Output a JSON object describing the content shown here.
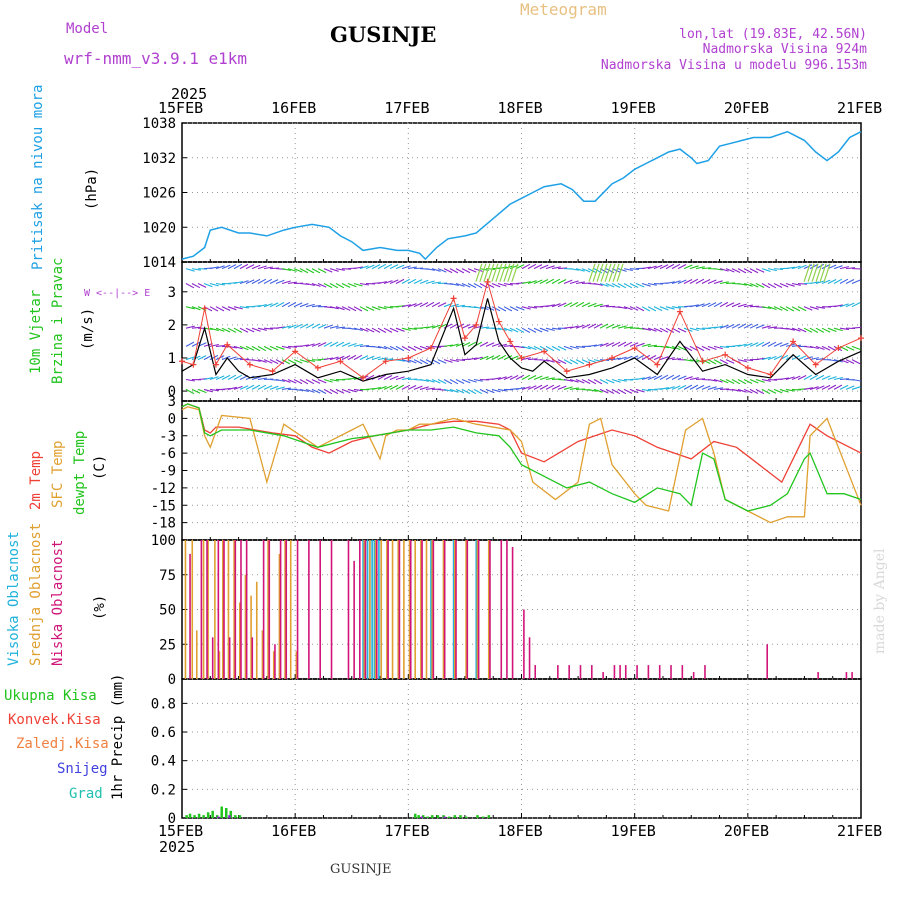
{
  "header": {
    "model_label": "Model",
    "model_name": "wrf-nmm_v3.9.1  e1km",
    "station": "GUSINJE",
    "title": "Meteogram",
    "coords": "lon,lat (19.83E, 42.56N)",
    "elevation": "Nadmorska Visina 924m",
    "model_elevation": "Nadmorska Visina u modelu 996.153m",
    "footer_station": "GUSINJE",
    "credit": "made by Angel"
  },
  "colors": {
    "pressure": "#1ea0e6",
    "temp2m": "#ef4036",
    "sfc_temp": "#e0a030",
    "dewpt": "#22c41e",
    "high_cloud": "#1eb2dc",
    "mid_cloud": "#e0a030",
    "low_cloud": "#d0147a",
    "wind_barb": "#8a22c8",
    "wind_line": "#000000",
    "gust_marker": "#ef4036"
  },
  "chart_data": [
    {
      "type": "line",
      "id": "pressure",
      "x_year": "2025",
      "x_ticks": [
        "15FEB",
        "16FEB",
        "17FEB",
        "18FEB",
        "19FEB",
        "20FEB",
        "21FEB"
      ],
      "xlim_days": [
        0,
        6
      ],
      "ylabel": "(hPa)",
      "side_labels": [
        "Pritisak na nivou mora"
      ],
      "y_ticks": [
        "1014",
        "1020",
        "1026",
        "1032",
        "1038"
      ],
      "ylim": [
        1014,
        1038
      ],
      "grid": true,
      "series": [
        {
          "name": "Pritisak na nivou mora",
          "color_key": "pressure",
          "x": [
            0,
            0.1,
            0.2,
            0.25,
            0.35,
            0.5,
            0.6,
            0.75,
            0.9,
            1.0,
            1.15,
            1.3,
            1.4,
            1.5,
            1.6,
            1.75,
            1.9,
            2.0,
            2.1,
            2.15,
            2.25,
            2.35,
            2.5,
            2.6,
            2.75,
            2.9,
            3.0,
            3.1,
            3.2,
            3.35,
            3.45,
            3.55,
            3.65,
            3.8,
            3.9,
            4.0,
            4.1,
            4.2,
            4.3,
            4.4,
            4.5,
            4.55,
            4.65,
            4.75,
            4.85,
            4.95,
            5.05,
            5.2,
            5.35,
            5.5,
            5.6,
            5.7,
            5.8,
            5.9,
            6.0
          ],
          "values": [
            1014.5,
            1015,
            1016.5,
            1019.5,
            1020,
            1019,
            1019,
            1018.5,
            1019.5,
            1020,
            1020.5,
            1020,
            1018.5,
            1017.5,
            1016,
            1016.5,
            1016,
            1016,
            1015.5,
            1014.5,
            1016.5,
            1018,
            1018.5,
            1019,
            1021.5,
            1024,
            1025,
            1026,
            1027,
            1027.5,
            1026.5,
            1024.5,
            1024.5,
            1027.5,
            1028.5,
            1030,
            1031,
            1032,
            1033,
            1033.5,
            1032,
            1031,
            1031.5,
            1034,
            1034.5,
            1035,
            1035.5,
            1035.5,
            1036.5,
            1035,
            1033,
            1031.5,
            1033,
            1035.5,
            1036.5
          ]
        }
      ]
    },
    {
      "type": "line",
      "id": "wind",
      "ylabel": "(m/s)",
      "side_labels": [
        "10m Vjetar",
        "Brzina i Pravac"
      ],
      "compass_label": "W <--|--> E",
      "y_ticks": [
        "0",
        "1",
        "2",
        "3"
      ],
      "ylim": [
        -0.3,
        3.9
      ],
      "grid": true,
      "barb_rows_ms": [
        0.05,
        0.35,
        0.95,
        1.35,
        1.9,
        2.55,
        3.25,
        3.7
      ],
      "series": [
        {
          "name": "Brzina",
          "color_key": "wind_line",
          "x": [
            0,
            0.1,
            0.2,
            0.3,
            0.4,
            0.5,
            0.6,
            0.8,
            1.0,
            1.2,
            1.4,
            1.6,
            1.8,
            2.0,
            2.2,
            2.4,
            2.5,
            2.6,
            2.7,
            2.8,
            2.9,
            3.0,
            3.1,
            3.2,
            3.4,
            3.6,
            3.8,
            4.0,
            4.2,
            4.4,
            4.6,
            4.8,
            5.0,
            5.2,
            5.4,
            5.6,
            5.8,
            6.0
          ],
          "values": [
            0.6,
            0.8,
            1.9,
            0.5,
            1.0,
            0.6,
            0.4,
            0.5,
            0.8,
            0.4,
            0.6,
            0.3,
            0.5,
            0.6,
            0.8,
            2.5,
            1.1,
            1.4,
            2.8,
            1.5,
            1.0,
            0.7,
            0.6,
            0.9,
            0.4,
            0.5,
            0.7,
            1.0,
            0.5,
            1.5,
            0.6,
            0.8,
            0.5,
            0.4,
            1.1,
            0.5,
            0.9,
            1.2
          ]
        },
        {
          "name": "Udari",
          "color_key": "gust_marker",
          "x": [
            0,
            0.1,
            0.2,
            0.3,
            0.4,
            0.6,
            0.8,
            1.0,
            1.2,
            1.4,
            1.6,
            1.8,
            2.0,
            2.2,
            2.4,
            2.5,
            2.6,
            2.7,
            2.8,
            2.9,
            3.0,
            3.2,
            3.4,
            3.6,
            3.8,
            4.0,
            4.2,
            4.4,
            4.6,
            4.8,
            5.0,
            5.2,
            5.4,
            5.6,
            5.8,
            6.0
          ],
          "values": [
            0.9,
            0.8,
            2.5,
            0.8,
            1.4,
            0.8,
            0.6,
            1.2,
            0.7,
            0.9,
            0.4,
            0.9,
            1.0,
            1.3,
            2.8,
            1.6,
            2.0,
            3.3,
            2.1,
            1.5,
            1.0,
            1.2,
            0.6,
            0.8,
            1.0,
            1.3,
            0.8,
            2.4,
            0.9,
            1.1,
            0.7,
            0.5,
            1.5,
            0.8,
            1.3,
            1.6
          ]
        }
      ]
    },
    {
      "type": "line",
      "id": "temperature",
      "ylabel": "(C)",
      "side_labels": [
        "2m Temp",
        "SFC Temp",
        "dewpt Temp"
      ],
      "y_ticks": [
        "3",
        "0",
        "-3",
        "-6",
        "-9",
        "-12",
        "-15",
        "-18"
      ],
      "ylim": [
        -21,
        3
      ],
      "grid": true,
      "series": [
        {
          "name": "2m Temp",
          "color_key": "temp2m",
          "x": [
            0,
            0.05,
            0.15,
            0.2,
            0.25,
            0.3,
            0.5,
            0.8,
            1.0,
            1.15,
            1.3,
            1.5,
            1.7,
            2.0,
            2.2,
            2.4,
            2.6,
            2.8,
            2.9,
            3.0,
            3.2,
            3.5,
            3.8,
            4.0,
            4.2,
            4.5,
            4.7,
            4.9,
            5.1,
            5.3,
            5.45,
            5.55,
            5.7,
            6.0
          ],
          "values": [
            2,
            2.5,
            1.8,
            -2,
            -2.5,
            -1.5,
            -1.5,
            -2.5,
            -3,
            -5,
            -6,
            -4,
            -3,
            -2,
            -1,
            -0.5,
            -0.5,
            -1,
            -2,
            -6,
            -7.5,
            -4,
            -2,
            -3,
            -5,
            -7,
            -4,
            -5,
            -8,
            -11,
            -5,
            -1,
            -3,
            -6
          ]
        },
        {
          "name": "SFC Temp",
          "color_key": "sfc_temp",
          "x": [
            0,
            0.05,
            0.15,
            0.2,
            0.25,
            0.35,
            0.6,
            0.75,
            0.9,
            1.2,
            1.5,
            1.6,
            1.7,
            1.75,
            1.8,
            1.9,
            2.0,
            2.1,
            2.2,
            2.4,
            2.6,
            2.9,
            3.0,
            3.1,
            3.3,
            3.5,
            3.6,
            3.7,
            3.8,
            4.0,
            4.1,
            4.3,
            4.45,
            4.6,
            4.7,
            4.8,
            5.0,
            5.2,
            5.35,
            5.5,
            5.55,
            5.7,
            6.0
          ],
          "values": [
            1.5,
            2,
            1.5,
            -3,
            -5,
            0.5,
            0,
            -11,
            -1,
            -5,
            -2,
            -1,
            -5,
            -7,
            -3,
            -2,
            -2,
            -1,
            -1,
            0,
            -1,
            -2,
            -4,
            -11,
            -14,
            -11,
            -1,
            0,
            -8,
            -13,
            -15,
            -16,
            -2,
            0,
            -6,
            -14,
            -16,
            -18,
            -17,
            -17,
            -3,
            0,
            -15
          ]
        },
        {
          "name": "dewpt Temp",
          "color_key": "dewpt",
          "x": [
            0,
            0.05,
            0.15,
            0.2,
            0.25,
            0.35,
            0.6,
            0.9,
            1.2,
            1.5,
            1.7,
            2.0,
            2.2,
            2.4,
            2.6,
            2.8,
            2.9,
            3.0,
            3.2,
            3.4,
            3.6,
            3.8,
            4.0,
            4.2,
            4.4,
            4.5,
            4.6,
            4.7,
            4.8,
            5.0,
            5.2,
            5.35,
            5.5,
            5.55,
            5.7,
            5.85,
            6.0
          ],
          "values": [
            2,
            2.5,
            1.8,
            -2.5,
            -3,
            -2,
            -2,
            -3,
            -5,
            -3.5,
            -3,
            -2,
            -2,
            -1.5,
            -2.5,
            -3,
            -5,
            -8,
            -10,
            -12,
            -11,
            -13,
            -14.5,
            -12,
            -13,
            -15,
            -6,
            -7,
            -14,
            -16,
            -15,
            -13,
            -7,
            -6,
            -13,
            -13,
            -14
          ]
        }
      ]
    },
    {
      "type": "bar",
      "id": "clouds",
      "ylabel": "(%)",
      "side_labels": [
        "Visoka Oblacnost",
        "Srednja Oblacnost",
        "Niska Oblacnost"
      ],
      "y_ticks": [
        "0",
        "25",
        "50",
        "75",
        "100"
      ],
      "ylim": [
        0,
        100
      ],
      "grid": true,
      "series": [
        {
          "name": "Visoka Oblacnost",
          "color_key": "high_cloud",
          "x": [
            1.6,
            1.62,
            1.64,
            1.66,
            1.68,
            1.7,
            1.72,
            1.74,
            1.76,
            2.2,
            2.4,
            2.6
          ],
          "values": [
            100,
            100,
            100,
            100,
            100,
            100,
            100,
            100,
            100,
            100,
            100,
            100
          ]
        },
        {
          "name": "Srednja Oblacnost",
          "color_key": "mid_cloud",
          "x": [
            0.02,
            0.08,
            0.12,
            0.18,
            0.22,
            0.28,
            0.32,
            0.35,
            0.4,
            0.45,
            0.5,
            0.55,
            0.6,
            0.65,
            0.7,
            0.75,
            0.8,
            0.85,
            0.9,
            0.95,
            1.0,
            1.6,
            1.65,
            1.7,
            1.75,
            1.8,
            1.85,
            1.9,
            1.95,
            2.0,
            2.05,
            2.1,
            2.15,
            2.2,
            2.3,
            2.4,
            2.5,
            2.6,
            2.7
          ],
          "values": [
            100,
            100,
            35,
            100,
            100,
            100,
            20,
            100,
            100,
            100,
            55,
            75,
            60,
            70,
            35,
            100,
            20,
            90,
            100,
            100,
            20,
            100,
            100,
            100,
            100,
            100,
            100,
            100,
            100,
            100,
            100,
            100,
            100,
            100,
            100,
            100,
            100,
            100,
            100
          ]
        },
        {
          "name": "Niska Oblacnost",
          "color_key": "low_cloud",
          "x": [
            0.05,
            0.15,
            0.2,
            0.25,
            0.3,
            0.35,
            0.4,
            0.45,
            0.5,
            0.55,
            0.6,
            0.7,
            0.75,
            0.8,
            0.85,
            0.9,
            1.0,
            1.1,
            1.2,
            1.3,
            1.45,
            1.5,
            1.55,
            1.6,
            1.7,
            1.8,
            1.9,
            2.0,
            2.1,
            2.2,
            2.3,
            2.4,
            2.5,
            2.6,
            2.7,
            2.8,
            2.85,
            2.9,
            3.0,
            3.05,
            3.1,
            3.3,
            3.4,
            3.5,
            3.6,
            3.7,
            3.8,
            3.85,
            3.9,
            4.0,
            4.1,
            4.2,
            4.3,
            4.4,
            4.5,
            4.6,
            5.15,
            5.6,
            5.85,
            5.9
          ],
          "values": [
            90,
            100,
            100,
            30,
            100,
            100,
            30,
            100,
            100,
            100,
            30,
            100,
            100,
            25,
            100,
            100,
            100,
            100,
            100,
            100,
            100,
            85,
            100,
            100,
            100,
            100,
            100,
            100,
            100,
            100,
            100,
            100,
            100,
            100,
            100,
            100,
            100,
            95,
            50,
            30,
            10,
            10,
            10,
            10,
            10,
            5,
            10,
            10,
            10,
            10,
            10,
            10,
            10,
            10,
            5,
            10,
            25,
            5,
            5,
            5
          ]
        }
      ]
    },
    {
      "type": "bar",
      "id": "precip",
      "ylabel": "1hr Precip (mm)",
      "side_labels": [
        "Ukupna Kisa",
        "Konvek.Kisa",
        "Zaledj.Kisa",
        "Snijeg",
        "Grad"
      ],
      "y_ticks": [
        "0",
        "0.2",
        "0.4",
        "0.6",
        "0.8"
      ],
      "ylim": [
        0,
        0.97
      ],
      "grid": true,
      "x_year": "2025",
      "x_ticks": [
        "15FEB",
        "16FEB",
        "17FEB",
        "18FEB",
        "19FEB",
        "20FEB",
        "21FEB"
      ],
      "series": [
        {
          "name": "Ukupna Kisa",
          "color_key": "dewpt",
          "x": [
            0.03,
            0.06,
            0.1,
            0.14,
            0.18,
            0.22,
            0.26,
            0.3,
            0.34,
            0.38,
            0.42,
            0.46,
            0.5,
            2.05,
            2.08,
            2.12,
            2.16,
            2.2,
            2.25,
            2.3,
            2.35,
            2.4,
            2.45,
            2.5,
            2.6,
            2.65,
            2.7
          ],
          "values": [
            0.02,
            0.03,
            0.02,
            0.03,
            0.02,
            0.04,
            0.05,
            0.02,
            0.08,
            0.07,
            0.05,
            0.02,
            0.02,
            0.03,
            0.02,
            0.02,
            0.01,
            0.02,
            0.02,
            0.02,
            0.01,
            0.02,
            0.02,
            0.01,
            0.02,
            0.01,
            0.02
          ]
        },
        {
          "name": "Snijeg",
          "color_key": "wind_barb",
          "x": [
            0.3,
            0.4,
            2.1,
            2.3
          ],
          "values": [
            0.01,
            0.02,
            0.01,
            0.01
          ]
        }
      ]
    }
  ]
}
